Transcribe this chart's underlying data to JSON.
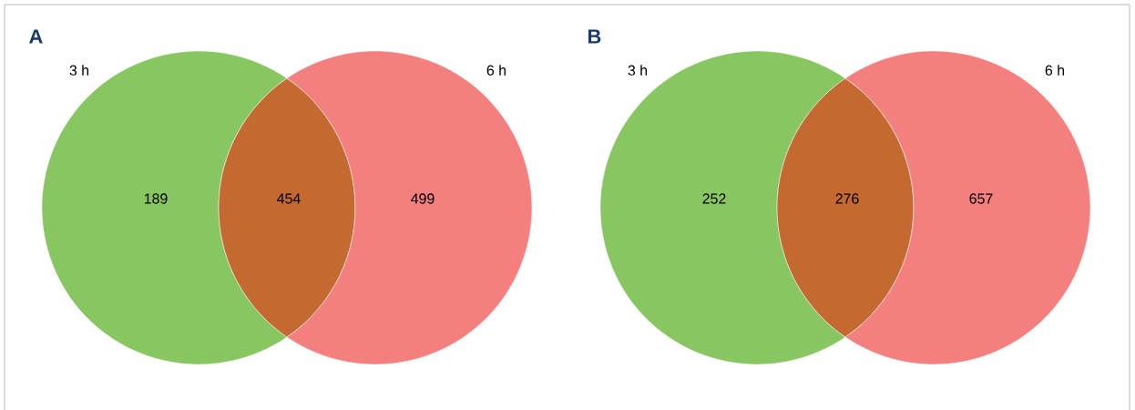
{
  "chart_data": [
    {
      "type": "other",
      "title": "A",
      "annotations": [
        "3 h",
        "6 h"
      ],
      "values": [
        189,
        454,
        499
      ],
      "colors": [
        "#88c662",
        "#c46a30",
        "#f47f7f"
      ],
      "data_labels": true
    },
    {
      "type": "other",
      "title": "B",
      "annotations": [
        "3 h",
        "6 h"
      ],
      "values": [
        252,
        276,
        657
      ],
      "colors": [
        "#88c662",
        "#c46a30",
        "#f47f7f"
      ],
      "data_labels": true
    }
  ]
}
